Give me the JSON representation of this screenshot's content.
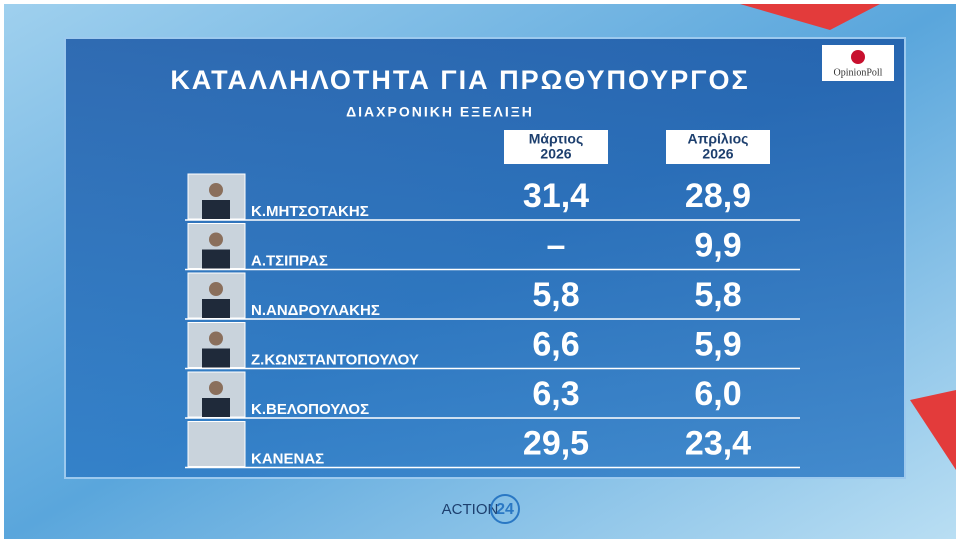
{
  "header": {
    "title": "ΚΑΤΑΛΛΗΛΟΤΗΤΑ ΓΙΑ ΠΡΩΘΥΠΟΥΡΓΟΣ",
    "subtitle": "ΔΙΑΧΡΟΝΙΚΗ ΕΞΕΛΙΞΗ"
  },
  "logo": "OpinionPoll",
  "columns": [
    {
      "month": "Μάρτιος",
      "year": "2026"
    },
    {
      "month": "Απρίλιος",
      "year": "2026"
    }
  ],
  "table": {
    "rows": [
      {
        "name": "Κ.ΜΗΤΣΟΤΑΚΗΣ",
        "values": [
          "31,4",
          "28,9"
        ]
      },
      {
        "name": "Α.ΤΣΙΠΡΑΣ",
        "values": [
          "–",
          "9,9"
        ]
      },
      {
        "name": "Ν.ΑΝΔΡΟΥΛΑΚΗΣ",
        "values": [
          "5,8",
          "5,8"
        ]
      },
      {
        "name": "Ζ.ΚΩΝΣΤΑΝΤΟΠΟΥΛΟΥ",
        "values": [
          "6,6",
          "5,9"
        ]
      },
      {
        "name": "Κ.ΒΕΛΟΠΟΥΛΟΣ",
        "values": [
          "6,3",
          "6,0"
        ]
      },
      {
        "name": "ΚΑΝΕΝΑΣ",
        "values": [
          "29,5",
          "23,4"
        ]
      }
    ]
  },
  "footer": {
    "brand": "ACTION",
    "number": "24"
  }
}
